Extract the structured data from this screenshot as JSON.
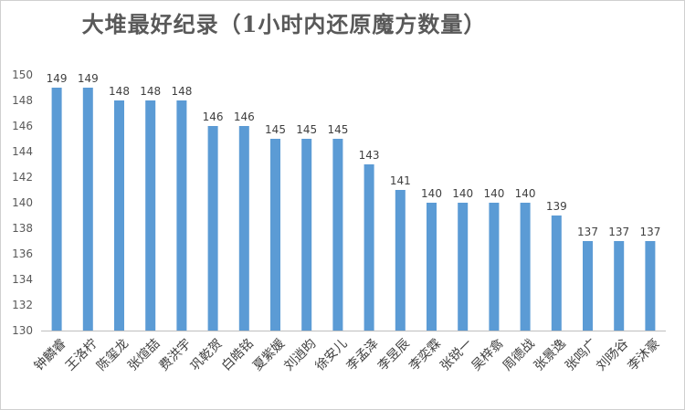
{
  "chart_data": {
    "type": "bar",
    "title": "大堆最好纪录（1小时内还原魔方数量）",
    "xlabel": "",
    "ylabel": "",
    "ylim": [
      130,
      150
    ],
    "yticks": [
      130,
      132,
      134,
      136,
      138,
      140,
      142,
      144,
      146,
      148,
      150
    ],
    "grid": false,
    "legend": "none",
    "bar_color": "#5b9bd5",
    "categories": [
      "钟麟睿",
      "王洛柠",
      "陈玺龙",
      "张煊喆",
      "费洪宇",
      "巩乾贺",
      "白皓铭",
      "夏紫媛",
      "刘逍昀",
      "徐安儿",
      "李孟泽",
      "李昱辰",
      "李奕霖",
      "张锐一",
      "吴梓翕",
      "周德战",
      "张景逸",
      "张鸣广",
      "刘旸谷",
      "李沐豪"
    ],
    "values": [
      149,
      149,
      148,
      148,
      148,
      146,
      146,
      145,
      145,
      145,
      143,
      141,
      140,
      140,
      140,
      140,
      139,
      137,
      137,
      137
    ],
    "data_labels": [
      "149",
      "149",
      "148",
      "148",
      "148",
      "146",
      "146",
      "145",
      "145",
      "145",
      "143",
      "141",
      "140",
      "140",
      "140",
      "140",
      "139",
      "137",
      "137",
      "137"
    ]
  }
}
